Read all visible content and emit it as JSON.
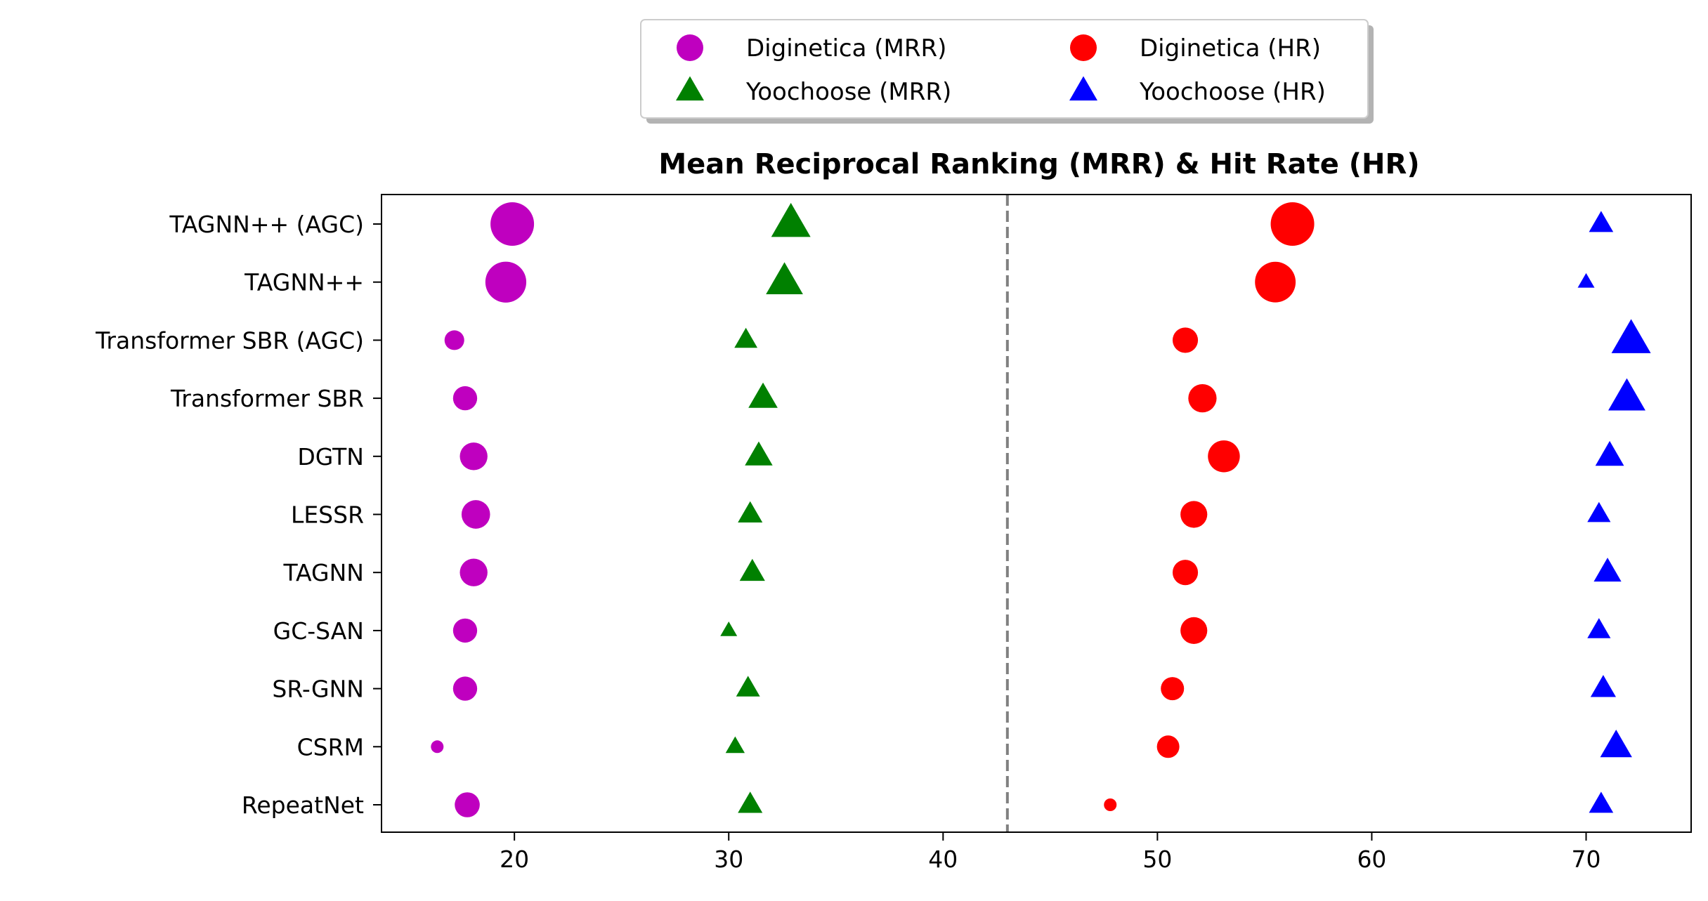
{
  "chart_data": {
    "type": "scatter",
    "title": "Mean Reciprocal Ranking (MRR) & Hit Rate (HR)",
    "xlabel": "",
    "ylabel": "",
    "xlim": [
      13.8,
      74.9
    ],
    "xticks": [
      20,
      30,
      40,
      50,
      60,
      70
    ],
    "divider_x": 43,
    "grid": false,
    "legend_placement": "top-center",
    "categories": [
      "TAGNN++ (AGC)",
      "TAGNN++",
      "Transformer SBR (AGC)",
      "Transformer SBR",
      "DGTN",
      "LESSR",
      "TAGNN",
      "GC-SAN",
      "SR-GNN",
      "CSRM",
      "RepeatNet"
    ],
    "series": [
      {
        "name": "Diginetica (MRR)",
        "marker": "circle",
        "color": "#bf00bf",
        "values": [
          19.9,
          19.6,
          17.2,
          17.7,
          18.1,
          18.2,
          18.1,
          17.7,
          17.7,
          16.4,
          17.8
        ]
      },
      {
        "name": "Yoochoose (MRR)",
        "marker": "triangle",
        "color": "#008000",
        "values": [
          32.9,
          32.6,
          30.8,
          31.6,
          31.4,
          31.0,
          31.1,
          30.0,
          30.9,
          30.3,
          31.0
        ]
      },
      {
        "name": "Diginetica (HR)",
        "marker": "circle",
        "color": "#ff0000",
        "values": [
          56.3,
          55.5,
          51.3,
          52.1,
          53.1,
          51.7,
          51.3,
          51.7,
          50.7,
          50.5,
          47.8
        ]
      },
      {
        "name": "Yoochoose (HR)",
        "marker": "triangle",
        "color": "#0000ff",
        "values": [
          70.7,
          70.0,
          72.1,
          71.9,
          71.1,
          70.6,
          71.0,
          70.6,
          70.8,
          71.4,
          70.7
        ]
      }
    ]
  }
}
